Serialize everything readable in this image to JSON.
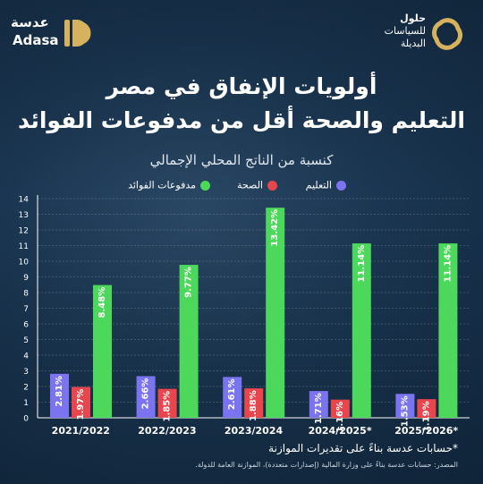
{
  "brand": {
    "right_logo_line1": "حلول",
    "right_logo_line2": "للسياسات",
    "right_logo_line3": "البديلة",
    "left_logo_ar": "عدسة",
    "left_logo_en": "Adasa"
  },
  "colors": {
    "education": "#7b74f0",
    "health": "#e8464c",
    "interest": "#4cd85a",
    "axis": "#ffffff",
    "grid": "#ffffff"
  },
  "footnote": "*حسابات عدسة بناءً على تقديرات الموازنة",
  "source": "المصدر: حسابات عدسة بناءً على وزارة المالية (إصدارات متعددة)، الموازنة العامة للدولة.",
  "chart_data": {
    "type": "bar",
    "title": "أولويات الإنفاق في مصر",
    "subtitle": "التعليم والصحة أقل من مدفوعات الفوائد",
    "ylabel": "كنسبة من الناتج المحلي الإجمالي",
    "categories": [
      "2021/2022",
      "2022/2023",
      "2023/2024",
      "2024/2025*",
      "2025/2026*"
    ],
    "series": [
      {
        "name": "التعليم",
        "values": [
          2.81,
          2.66,
          2.61,
          1.71,
          1.53
        ],
        "labels": [
          "2.81%",
          "2.66%",
          "2.61%",
          "1.71%",
          "1.53%"
        ]
      },
      {
        "name": "الصحة",
        "values": [
          1.97,
          1.85,
          1.88,
          1.16,
          1.19
        ],
        "labels": [
          "1.97%",
          "1.85%",
          "1.88%",
          "1.16%",
          "1.19%"
        ]
      },
      {
        "name": "مدفوعات الفوائد",
        "values": [
          8.48,
          9.77,
          13.42,
          11.14,
          11.14
        ],
        "labels": [
          "8.48%",
          "9.77%",
          "13.42%",
          "11.14%",
          "11.14%"
        ]
      }
    ],
    "yticks": [
      "0",
      "1",
      "2",
      "3",
      "4",
      "5",
      "6",
      "7",
      "8",
      "9",
      "10",
      "11",
      "12",
      "13",
      "14"
    ],
    "ylim": [
      0,
      14
    ],
    "grid": true,
    "legend_position": "top"
  }
}
